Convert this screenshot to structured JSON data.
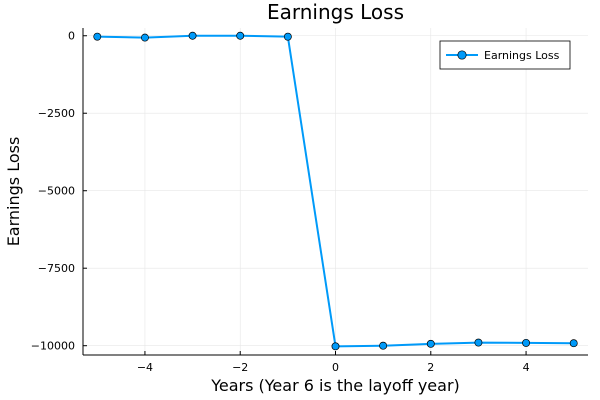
{
  "chart_data": {
    "type": "line",
    "title": "Earnings Loss",
    "xlabel": "Years (Year 6 is the layoff year)",
    "ylabel": "Earnings Loss",
    "xlim": [
      -5.3,
      5.3
    ],
    "ylim": [
      -10300,
      250
    ],
    "xticks": [
      -4,
      -2,
      0,
      2,
      4
    ],
    "xtick_labels": [
      "−4",
      "−2",
      "0",
      "2",
      "4"
    ],
    "yticks": [
      0,
      -2500,
      -5000,
      -7500,
      -10000
    ],
    "ytick_labels": [
      "0",
      "−2500",
      "−5000",
      "−7500",
      "−10000"
    ],
    "grid": true,
    "legend_position": "top-right",
    "color": "#009AF9",
    "series": [
      {
        "name": "Earnings Loss",
        "x": [
          -5,
          -4,
          -3,
          -2,
          -1,
          0,
          1,
          2,
          3,
          4,
          5
        ],
        "y": [
          -30,
          -60,
          0,
          0,
          -30,
          -10020,
          -10000,
          -9940,
          -9900,
          -9910,
          -9920
        ]
      }
    ]
  }
}
